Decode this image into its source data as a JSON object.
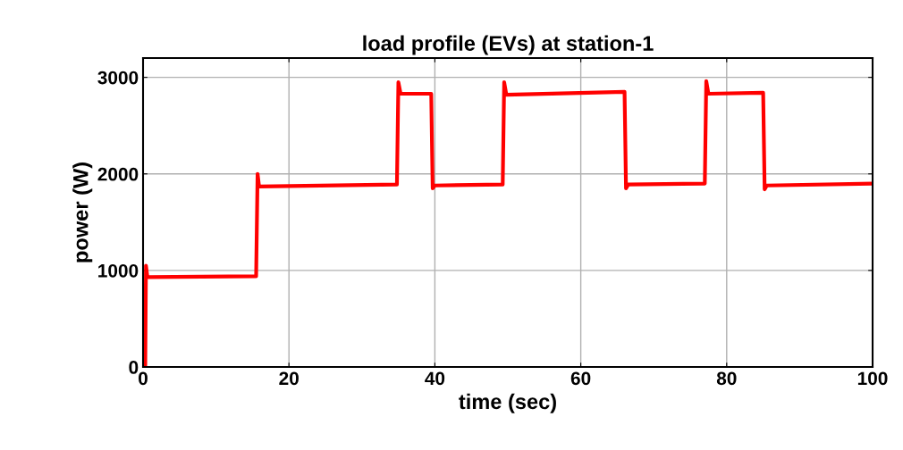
{
  "chart_data": {
    "type": "line",
    "title": "load profile (EVs) at station-1",
    "xlabel": "time (sec)",
    "ylabel": "power (W)",
    "series": [
      {
        "color": "#ff0000",
        "x": [
          0.3,
          0.4,
          0.6,
          15.5,
          15.7,
          15.9,
          34.8,
          35.0,
          35.3,
          39.5,
          39.7,
          40.0,
          49.3,
          49.5,
          49.8,
          66.0,
          66.2,
          66.5,
          77.0,
          77.2,
          77.5,
          85.0,
          85.2,
          85.5,
          100
        ],
        "values": [
          0,
          1050,
          930,
          940,
          2000,
          1870,
          1890,
          2950,
          2830,
          2830,
          1850,
          1880,
          1890,
          2950,
          2820,
          2850,
          1850,
          1890,
          1900,
          2960,
          2830,
          2840,
          1840,
          1880,
          1900
        ]
      }
    ],
    "xlim": [
      0,
      100
    ],
    "xticks": [
      0,
      20,
      40,
      60,
      80,
      100
    ],
    "ylim": [
      0,
      3200
    ],
    "yticks": [
      0,
      1000,
      2000,
      3000
    ],
    "grid": true,
    "line_style": "solid",
    "marker": "none"
  }
}
